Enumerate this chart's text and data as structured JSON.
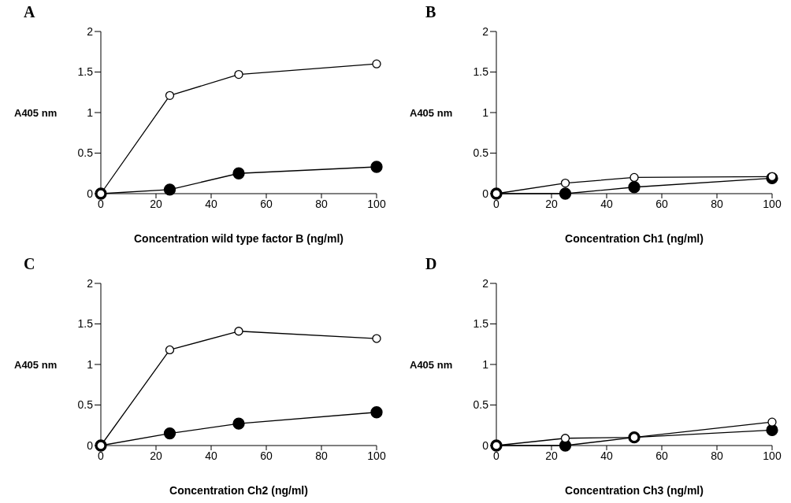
{
  "chart_data": [
    {
      "type": "line",
      "title": "A",
      "xlabel": "Concentration wild type factor B (ng/ml)",
      "ylabel": "A405 nm",
      "x": [
        0,
        25,
        50,
        100
      ],
      "xlim": [
        0,
        100
      ],
      "xticks": [
        0,
        20,
        40,
        60,
        80,
        100
      ],
      "ylim": [
        0,
        2
      ],
      "yticks": [
        0,
        0.5,
        1,
        1.5,
        2
      ],
      "marker": "circle",
      "line_style": "solid",
      "series": [
        {
          "color": "#ffffff",
          "values": [
            0,
            1.21,
            1.47,
            1.6
          ]
        },
        {
          "color": "#000000",
          "values": [
            0,
            0.05,
            0.25,
            0.33
          ]
        }
      ]
    },
    {
      "type": "line",
      "title": "B",
      "xlabel": "Concentration Ch1 (ng/ml)",
      "ylabel": "A405 nm",
      "x": [
        0,
        25,
        50,
        100
      ],
      "xlim": [
        0,
        100
      ],
      "xticks": [
        0,
        20,
        40,
        60,
        80,
        100
      ],
      "ylim": [
        0,
        2
      ],
      "yticks": [
        0,
        0.5,
        1,
        1.5,
        2
      ],
      "marker": "circle",
      "line_style": "solid",
      "series": [
        {
          "color": "#ffffff",
          "values": [
            0,
            0.13,
            0.2,
            0.21
          ]
        },
        {
          "color": "#000000",
          "values": [
            0,
            0,
            0.08,
            0.19
          ]
        }
      ]
    },
    {
      "type": "line",
      "title": "C",
      "xlabel": "Concentration Ch2 (ng/ml)",
      "ylabel": "A405 nm",
      "x": [
        0,
        25,
        50,
        100
      ],
      "xlim": [
        0,
        100
      ],
      "xticks": [
        0,
        20,
        40,
        60,
        80,
        100
      ],
      "ylim": [
        0,
        2
      ],
      "yticks": [
        0,
        0.5,
        1,
        1.5,
        2
      ],
      "marker": "circle",
      "line_style": "solid",
      "series": [
        {
          "color": "#ffffff",
          "values": [
            0,
            1.18,
            1.41,
            1.32
          ]
        },
        {
          "color": "#000000",
          "values": [
            0,
            0.15,
            0.27,
            0.41
          ]
        }
      ]
    },
    {
      "type": "line",
      "title": "D",
      "xlabel": "Concentration Ch3 (ng/ml)",
      "ylabel": "A405 nm",
      "x": [
        0,
        25,
        50,
        100
      ],
      "xlim": [
        0,
        100
      ],
      "xticks": [
        0,
        20,
        40,
        60,
        80,
        100
      ],
      "ylim": [
        0,
        2
      ],
      "yticks": [
        0,
        0.5,
        1,
        1.5,
        2
      ],
      "marker": "circle",
      "line_style": "solid",
      "series": [
        {
          "color": "#ffffff",
          "values": [
            0,
            0.09,
            0.1,
            0.29
          ]
        },
        {
          "color": "#000000",
          "values": [
            0,
            0,
            0.1,
            0.19
          ]
        }
      ]
    }
  ]
}
